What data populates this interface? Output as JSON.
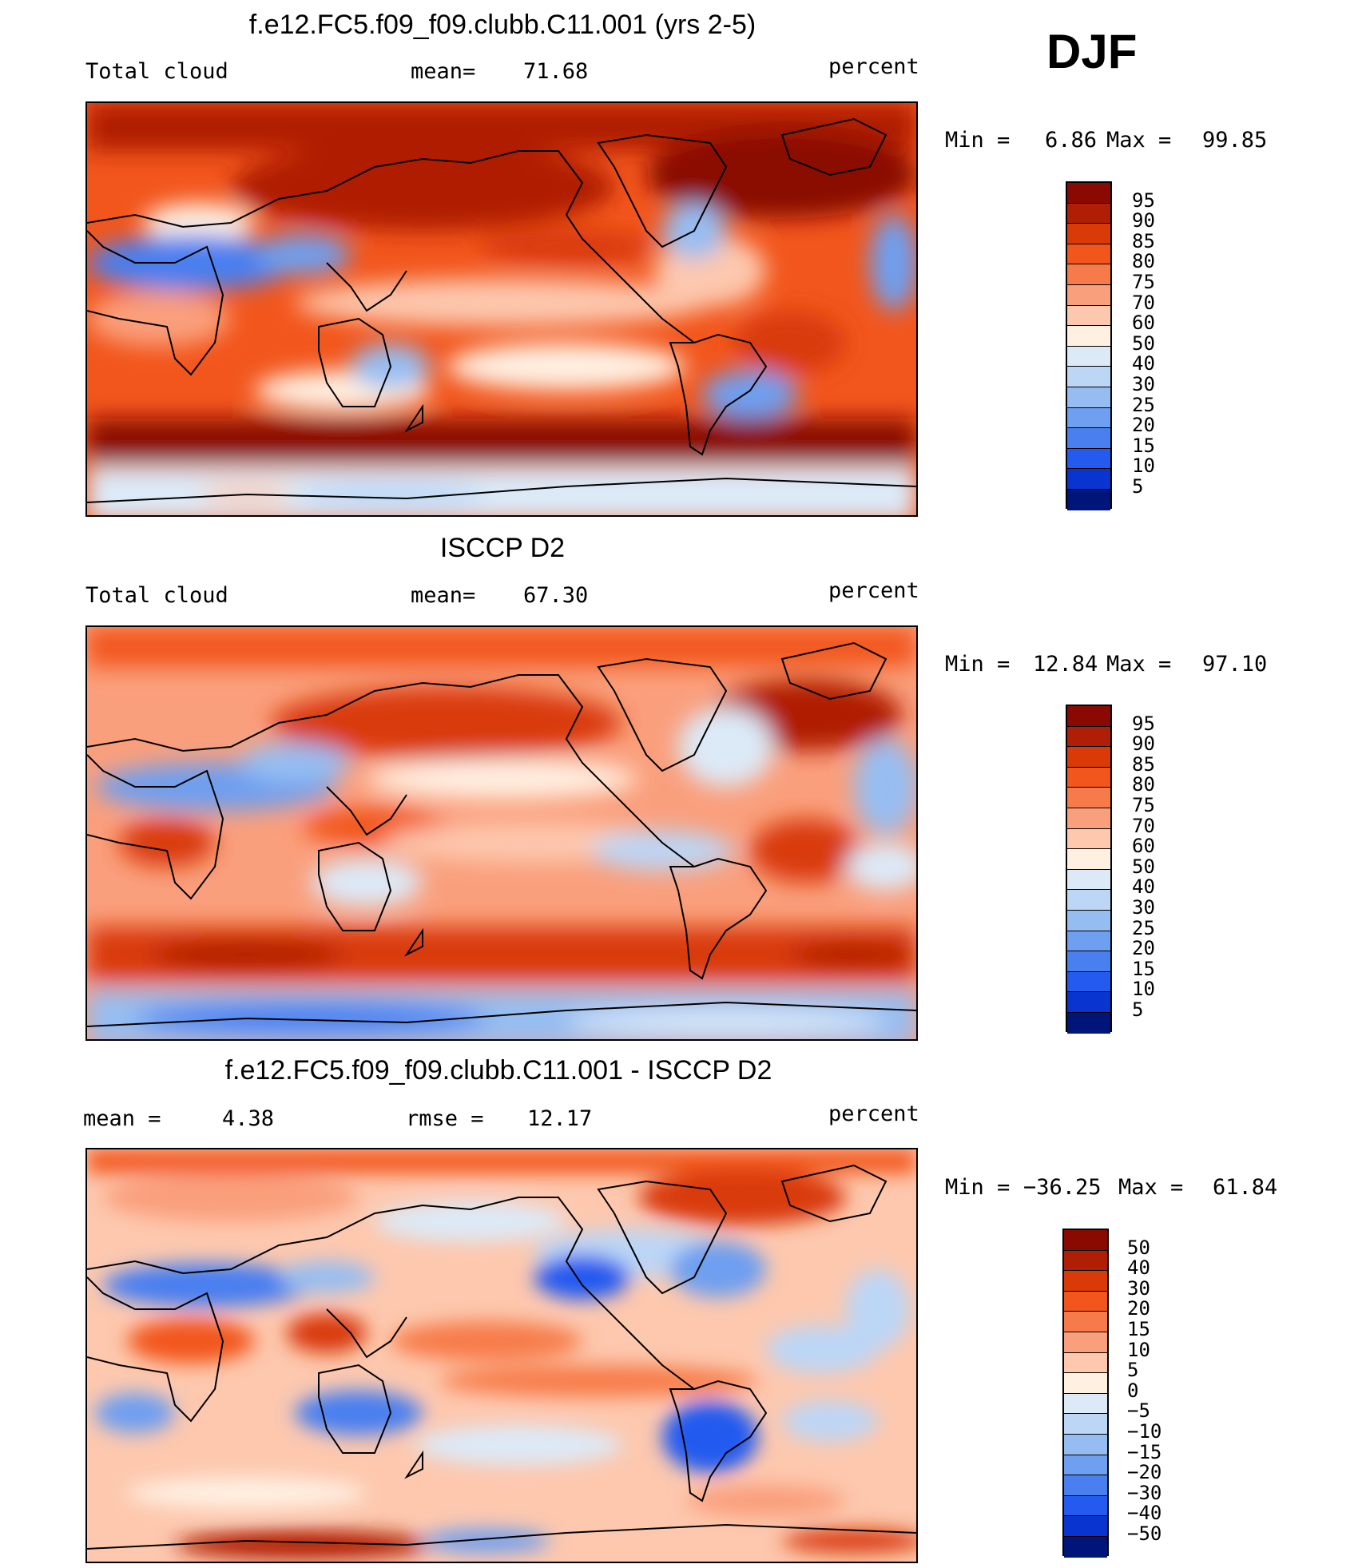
{
  "season": "DJF",
  "panels": [
    {
      "title": "f.e12.FC5.f09_f09.clubb.C11.001 (yrs 2-5)",
      "variable": "Total cloud",
      "stat_label": "mean=",
      "stat_value": "71.68",
      "units": "percent",
      "min_label": "Min =",
      "min_value": "6.86",
      "max_label": "Max =",
      "max_value": "99.85"
    },
    {
      "title": "ISCCP D2",
      "variable": "Total cloud",
      "stat_label": "mean=",
      "stat_value": "67.30",
      "units": "percent",
      "min_label": "Min =",
      "min_value": "12.84",
      "max_label": "Max =",
      "max_value": "97.10"
    },
    {
      "title": "f.e12.FC5.f09_f09.clubb.C11.001 - ISCCP D2",
      "stat1_label": "mean =",
      "stat1_value": "4.38",
      "stat2_label": "rmse =",
      "stat2_value": "12.17",
      "units": "percent",
      "min_label": "Min =",
      "min_value": "−36.25",
      "max_label": "Max =",
      "max_value": "61.84"
    }
  ],
  "colorbars": [
    {
      "labels": [
        "95",
        "90",
        "85",
        "80",
        "75",
        "70",
        "60",
        "50",
        "40",
        "30",
        "25",
        "20",
        "15",
        "10",
        "5"
      ],
      "colors": [
        "#8a0a02",
        "#b01f05",
        "#d93a08",
        "#f2561c",
        "#f77b4a",
        "#fa9f7c",
        "#fdc8ae",
        "#fff0e2",
        "#dceaf8",
        "#bcd6f6",
        "#96bdf2",
        "#6e9ff0",
        "#4a7ff0",
        "#245af0",
        "#0a34d0",
        "#00157a"
      ]
    },
    {
      "labels": [
        "95",
        "90",
        "85",
        "80",
        "75",
        "70",
        "60",
        "50",
        "40",
        "30",
        "25",
        "20",
        "15",
        "10",
        "5"
      ],
      "colors": [
        "#8a0a02",
        "#b01f05",
        "#d93a08",
        "#f2561c",
        "#f77b4a",
        "#fa9f7c",
        "#fdc8ae",
        "#fff0e2",
        "#dceaf8",
        "#bcd6f6",
        "#96bdf2",
        "#6e9ff0",
        "#4a7ff0",
        "#245af0",
        "#0a34d0",
        "#00157a"
      ]
    },
    {
      "labels": [
        "50",
        "40",
        "30",
        "20",
        "15",
        "10",
        "5",
        "0",
        "−5",
        "−10",
        "−15",
        "−20",
        "−30",
        "−40",
        "−50"
      ],
      "colors": [
        "#8a0a02",
        "#b01f05",
        "#d93a08",
        "#f2561c",
        "#f77b4a",
        "#fa9f7c",
        "#fdc8ae",
        "#fff0e2",
        "#dceaf8",
        "#bcd6f6",
        "#96bdf2",
        "#6e9ff0",
        "#4a7ff0",
        "#245af0",
        "#0a34d0",
        "#00157a"
      ]
    }
  ],
  "chart_data": [
    {
      "type": "heatmap",
      "title": "f.e12.FC5.f09_f09.clubb.C11.001 (yrs 2-5)",
      "variable": "Total cloud",
      "units": "percent",
      "mean": 71.68,
      "min": 6.86,
      "max": 99.85,
      "levels": [
        5,
        10,
        15,
        20,
        25,
        30,
        40,
        50,
        60,
        70,
        75,
        80,
        85,
        90,
        95
      ]
    },
    {
      "type": "heatmap",
      "title": "ISCCP D2",
      "variable": "Total cloud",
      "units": "percent",
      "mean": 67.3,
      "min": 12.84,
      "max": 97.1,
      "levels": [
        5,
        10,
        15,
        20,
        25,
        30,
        40,
        50,
        60,
        70,
        75,
        80,
        85,
        90,
        95
      ]
    },
    {
      "type": "heatmap",
      "title": "f.e12.FC5.f09_f09.clubb.C11.001 - ISCCP D2",
      "units": "percent",
      "mean": 4.38,
      "rmse": 12.17,
      "min": -36.25,
      "max": 61.84,
      "levels": [
        -50,
        -40,
        -30,
        -20,
        -15,
        -10,
        -5,
        0,
        5,
        10,
        15,
        20,
        30,
        40,
        50
      ]
    }
  ]
}
